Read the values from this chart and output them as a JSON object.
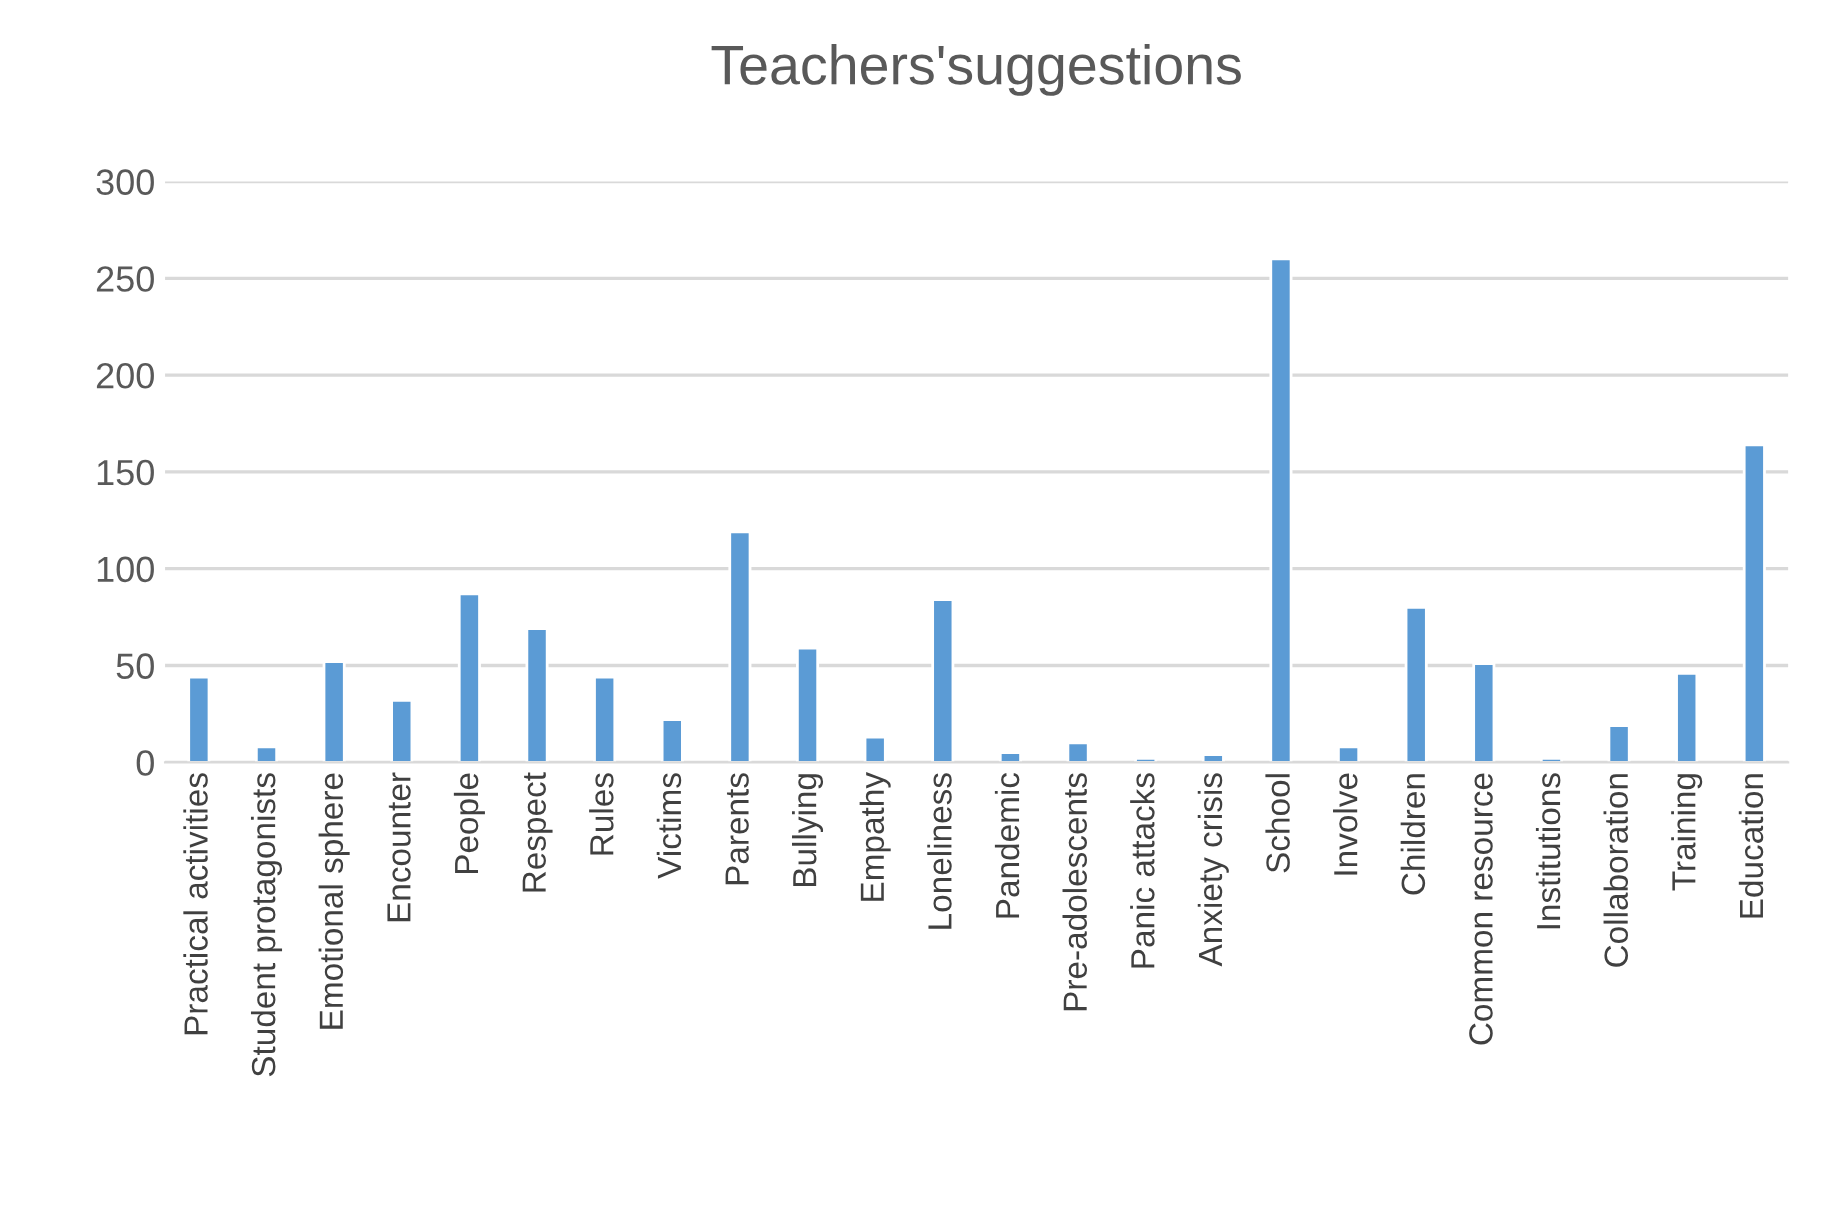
{
  "chart_data": {
    "type": "bar",
    "title": "Teachers'suggestions",
    "categories": [
      "Practical activities",
      "Student protagonists",
      "Emotional sphere",
      "Encounter",
      "People",
      "Respect",
      "Rules",
      "Victims",
      "Parents",
      "Bullying",
      "Empathy",
      "Loneliness",
      "Pandemic",
      "Pre-adolescents",
      "Panic attacks",
      "Anxiety crisis",
      "School",
      "Involve",
      "Children",
      "Common resource",
      "Institutions",
      "Collaboration",
      "Training",
      "Education"
    ],
    "values": [
      44,
      8,
      52,
      32,
      87,
      69,
      44,
      22,
      119,
      59,
      13,
      84,
      5,
      10,
      2,
      4,
      260,
      8,
      80,
      51,
      2,
      19,
      46,
      164
    ],
    "color": "#5b9bd5",
    "ylim": [
      0,
      300
    ],
    "yticks": [
      0,
      50,
      100,
      150,
      200,
      250,
      300
    ],
    "grid": "y",
    "legend": false
  }
}
